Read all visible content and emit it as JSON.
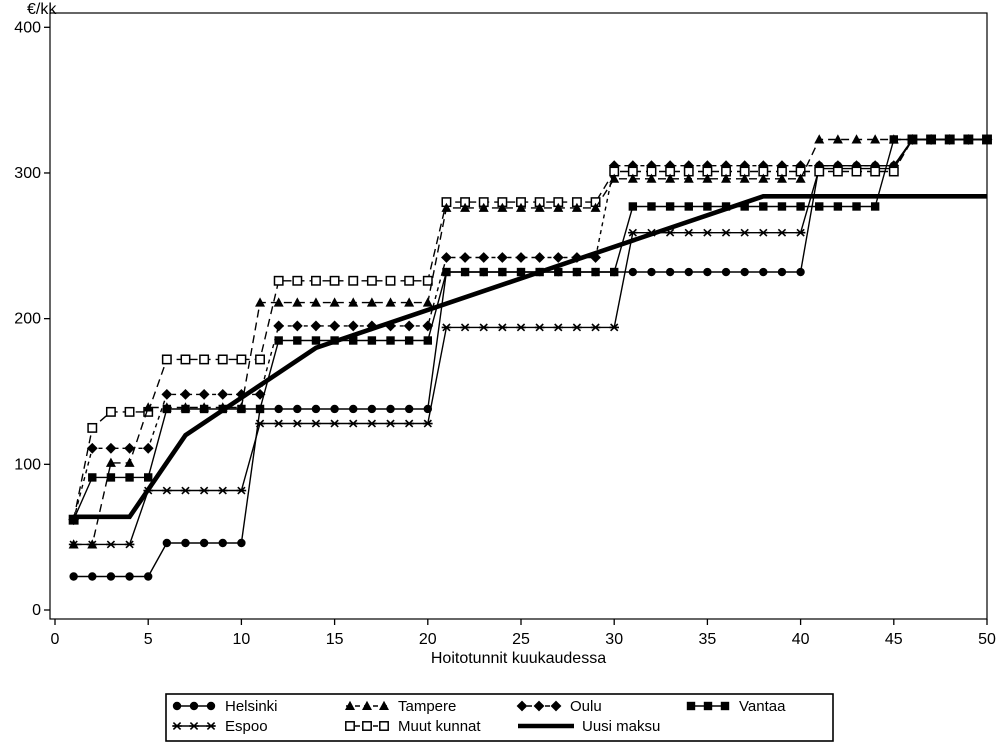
{
  "accent_color": "#000000",
  "background_color": "#ffffff",
  "chart_data": {
    "type": "line",
    "subtype": "step-lines-with-markers",
    "title": "",
    "xlabel": "Hoitotunnit kuukaudessa",
    "ylabel": "€/kk",
    "xlim": [
      0,
      50
    ],
    "ylim": [
      0,
      400
    ],
    "x_ticks": [
      0,
      5,
      10,
      15,
      20,
      25,
      30,
      35,
      40,
      45,
      50
    ],
    "y_ticks": [
      0,
      100,
      200,
      300,
      400
    ],
    "grid": "off",
    "legend_position": "bottom-boxed",
    "series": [
      {
        "name": "Helsinki",
        "marker": "circle",
        "line": "solid",
        "steps": [
          [
            1,
            5,
            23
          ],
          [
            6,
            10,
            46
          ],
          [
            11,
            20,
            138
          ],
          [
            21,
            40,
            232
          ],
          [
            41,
            45,
            305
          ],
          [
            46,
            50,
            323
          ]
        ]
      },
      {
        "name": "Espoo",
        "marker": "asterisk",
        "line": "solid",
        "steps": [
          [
            1,
            4,
            45
          ],
          [
            5,
            10,
            82
          ],
          [
            11,
            20,
            128
          ],
          [
            21,
            30,
            194
          ],
          [
            31,
            40,
            259
          ],
          [
            41,
            45,
            303
          ],
          [
            46,
            50,
            323
          ]
        ]
      },
      {
        "name": "Oulu",
        "marker": "diamond",
        "line": "dashdot",
        "steps": [
          [
            1,
            1,
            62
          ],
          [
            2,
            5,
            111
          ],
          [
            6,
            11,
            148
          ],
          [
            12,
            20,
            195
          ],
          [
            21,
            29,
            242
          ],
          [
            30,
            45,
            305
          ],
          [
            46,
            50,
            323
          ]
        ]
      },
      {
        "name": "Muut kunnat",
        "marker": "square-open",
        "line": "dashed",
        "steps": [
          [
            1,
            1,
            62
          ],
          [
            2,
            2,
            125
          ],
          [
            3,
            5,
            136
          ],
          [
            6,
            11,
            172
          ],
          [
            12,
            20,
            226
          ],
          [
            21,
            29,
            280
          ],
          [
            30,
            45,
            301
          ],
          [
            46,
            50,
            323
          ]
        ]
      },
      {
        "name": "Tampere",
        "marker": "triangle",
        "line": "dashed",
        "steps": [
          [
            1,
            2,
            45
          ],
          [
            3,
            4,
            101
          ],
          [
            5,
            10,
            139
          ],
          [
            11,
            20,
            211
          ],
          [
            21,
            29,
            276
          ],
          [
            30,
            40,
            296
          ],
          [
            41,
            50,
            323
          ]
        ]
      },
      {
        "name": "Vantaa",
        "marker": "square",
        "line": "solid",
        "steps": [
          [
            1,
            1,
            62
          ],
          [
            2,
            5,
            91
          ],
          [
            6,
            11,
            138
          ],
          [
            12,
            20,
            185
          ],
          [
            21,
            30,
            232
          ],
          [
            31,
            44,
            277
          ],
          [
            45,
            50,
            323
          ]
        ]
      },
      {
        "name": "Uusi maksu",
        "marker": "none",
        "line": "thick",
        "points": [
          [
            1,
            64
          ],
          [
            4,
            64
          ],
          [
            7,
            120
          ],
          [
            14,
            180
          ],
          [
            38,
            284
          ],
          [
            50,
            284
          ]
        ]
      }
    ],
    "legend_rows": [
      [
        "Helsinki",
        "Tampere",
        "Oulu",
        "Vantaa"
      ],
      [
        "Espoo",
        "Muut kunnat",
        "Uusi maksu"
      ]
    ]
  }
}
